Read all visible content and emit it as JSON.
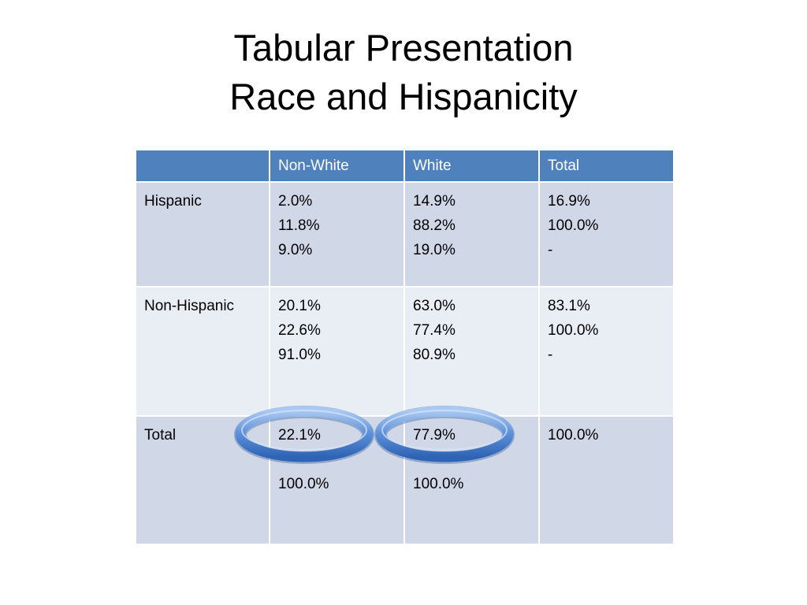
{
  "slide": {
    "title_line1": "Tabular Presentation",
    "title_line2": "Race and Hispanicity"
  },
  "colors": {
    "header_fill": "#4f81bd",
    "band_dark": "#d0d8e8",
    "band_light": "#e9edf4",
    "highlight_ring": "#5b8fd8"
  },
  "chart_data": {
    "type": "table",
    "columns": [
      "",
      "Non-White",
      "White",
      "Total"
    ],
    "rows": [
      {
        "label": "Hispanic",
        "cells": [
          [
            "2.0%",
            "11.8%",
            "9.0%"
          ],
          [
            "14.9%",
            "88.2%",
            "19.0%"
          ],
          [
            "16.9%",
            "100.0%",
            "-"
          ]
        ]
      },
      {
        "label": "Non-Hispanic",
        "cells": [
          [
            "20.1%",
            "22.6%",
            "91.0%"
          ],
          [
            "63.0%",
            "77.4%",
            "80.9%"
          ],
          [
            "83.1%",
            "100.0%",
            "-"
          ]
        ]
      },
      {
        "label": "Total",
        "cells": [
          [
            "22.1%",
            "",
            "100.0%"
          ],
          [
            "77.9%",
            "",
            "100.0%"
          ],
          [
            "100.0%"
          ]
        ]
      }
    ],
    "highlighted_cells": [
      "22.1%",
      "77.9%"
    ]
  }
}
